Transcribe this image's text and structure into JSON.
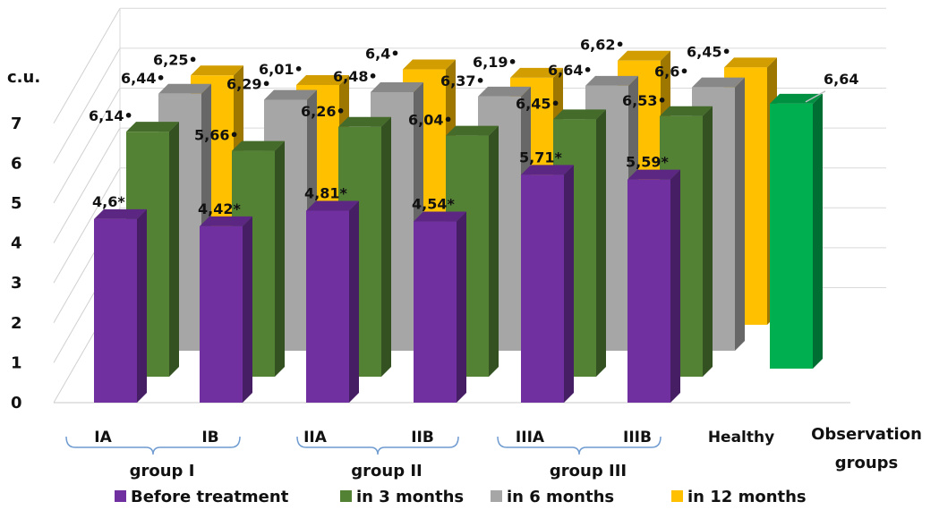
{
  "chart_data": {
    "type": "bar",
    "style": "3d-clustered-depth",
    "ylabel": "c.u.",
    "xlabel": "Observation groups",
    "ylim": [
      0,
      7
    ],
    "yticks": [
      "0",
      "1",
      "2",
      "3",
      "4",
      "5",
      "6",
      "7"
    ],
    "categories": [
      "IA",
      "IB",
      "IIA",
      "IIB",
      "IIIA",
      "IIIB",
      "Healthy"
    ],
    "groups": [
      {
        "label": "group I",
        "span": [
          0,
          1
        ]
      },
      {
        "label": "group II",
        "span": [
          2,
          3
        ]
      },
      {
        "label": "group III",
        "span": [
          4,
          5
        ]
      }
    ],
    "series": [
      {
        "name": "Before treatment",
        "color": "#7030A0",
        "values": [
          4.6,
          4.42,
          4.81,
          4.54,
          5.71,
          5.59,
          null
        ],
        "labels": [
          "4,6*",
          "4,42*",
          "4,81*",
          "4,54*",
          "5,71*",
          "5,59*",
          null
        ]
      },
      {
        "name": "in 3 months",
        "color": "#548235",
        "values": [
          6.14,
          5.66,
          6.26,
          6.04,
          6.45,
          6.53,
          null
        ],
        "labels": [
          "6,14•",
          "5,66•",
          "6,26•",
          "6,04•",
          "6,45•",
          "6,53•",
          null
        ]
      },
      {
        "name": "in 6 months",
        "color": "#A6A6A6",
        "values": [
          6.44,
          6.29,
          6.48,
          6.37,
          6.64,
          6.6,
          null
        ],
        "labels": [
          "6,44•",
          "6,29•",
          "6,48•",
          "6,37•",
          "6,64•",
          "6,6•",
          null
        ]
      },
      {
        "name": "in 12 months",
        "color": "#FFC000",
        "values": [
          6.25,
          6.01,
          6.4,
          6.19,
          6.62,
          6.45,
          null
        ],
        "labels": [
          "6,25•",
          "6,01•",
          "6,4•",
          "6,19•",
          "6,62•",
          "6,45•",
          null
        ]
      }
    ],
    "healthy": {
      "value": 6.64,
      "label": "6,64",
      "color": "#00B050"
    },
    "legend_position": "bottom",
    "grid": true
  }
}
